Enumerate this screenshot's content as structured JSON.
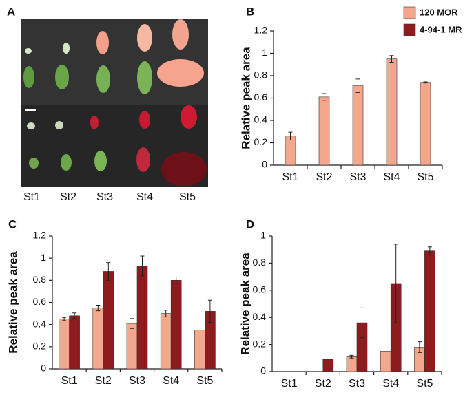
{
  "photo": {
    "panel": "A",
    "labels": [
      "St1",
      "St2",
      "St3",
      "St4",
      "St5"
    ]
  },
  "legend": [
    {
      "name": "120 MOR",
      "color": "#f3a88d"
    },
    {
      "name": "4-94-1 MR",
      "color": "#8e1b1e"
    }
  ],
  "chart_data": [
    {
      "type": "bar",
      "panel": "B",
      "ylabel": "Relative peak area",
      "categories": [
        "St1",
        "St2",
        "St3",
        "St4",
        "St5"
      ],
      "series": [
        {
          "color": "#f3a88d",
          "values": [
            0.26,
            0.61,
            0.71,
            0.95,
            0.74
          ],
          "errors": [
            0.035,
            0.03,
            0.06,
            0.03,
            0.005
          ]
        }
      ],
      "ylim": [
        0,
        1.2
      ],
      "yticks": [
        0,
        0.2,
        0.4,
        0.6,
        0.8,
        1,
        1.2
      ]
    },
    {
      "type": "bar",
      "panel": "C",
      "ylabel": "Relative peak area",
      "categories": [
        "St1",
        "St2",
        "St3",
        "St4",
        "St5"
      ],
      "series": [
        {
          "color": "#f3a88d",
          "values": [
            0.45,
            0.55,
            0.41,
            0.5,
            0.35
          ],
          "errors": [
            0.015,
            0.025,
            0.045,
            0.03,
            0
          ]
        },
        {
          "color": "#8e1b1e",
          "values": [
            0.48,
            0.88,
            0.93,
            0.8,
            0.52
          ],
          "errors": [
            0.025,
            0.08,
            0.09,
            0.03,
            0.1
          ]
        }
      ],
      "ylim": [
        0,
        1.2
      ],
      "yticks": [
        0,
        0.2,
        0.4,
        0.6,
        0.8,
        1,
        1.2
      ]
    },
    {
      "type": "bar",
      "panel": "D",
      "ylabel": "Relative peak area",
      "categories": [
        "St1",
        "St2",
        "St3",
        "St4",
        "St5"
      ],
      "series": [
        {
          "color": "#f3a88d",
          "values": [
            0,
            0,
            0.11,
            0.15,
            0.18
          ],
          "errors": [
            0,
            0,
            0.01,
            0,
            0.04
          ]
        },
        {
          "color": "#8e1b1e",
          "values": [
            0,
            0.09,
            0.36,
            0.65,
            0.89
          ],
          "errors": [
            0,
            0,
            0.11,
            0.29,
            0.03
          ]
        }
      ],
      "ylim": [
        0,
        1
      ],
      "yticks": [
        0,
        0.2,
        0.4,
        0.6,
        0.8,
        1
      ]
    }
  ]
}
